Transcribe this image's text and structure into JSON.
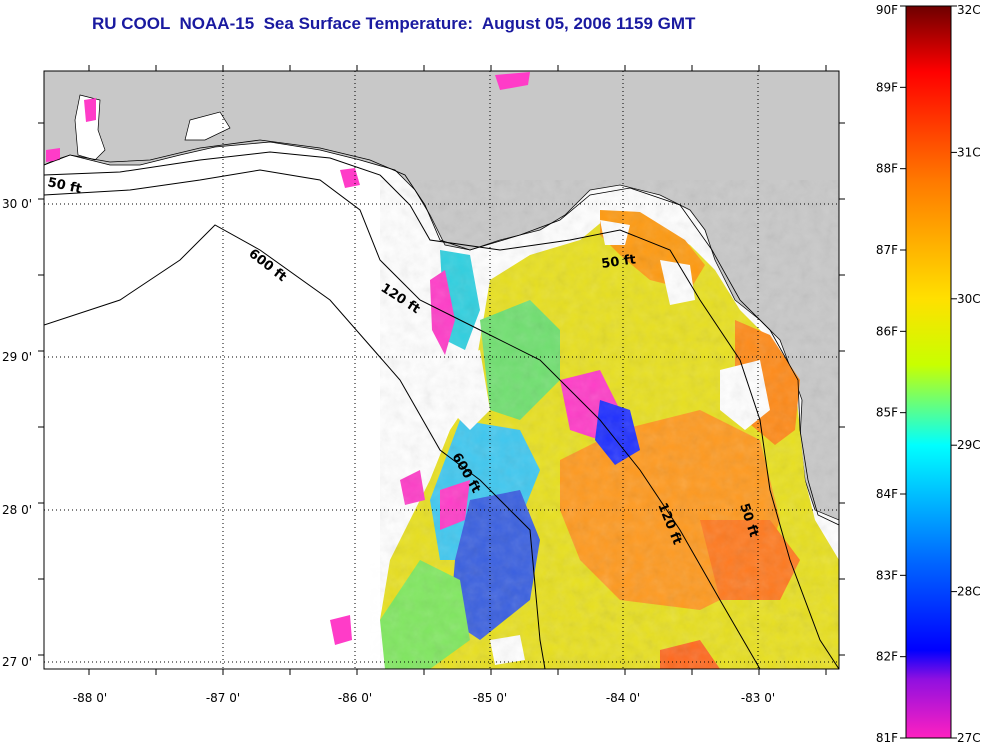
{
  "title": "RU COOL  NOAA-15  Sea Surface Temperature:  August 05, 2006 1159 GMT",
  "map": {
    "lat_labels": [
      "30 0'",
      "29 0'",
      "28 0'",
      "27 0'"
    ],
    "lon_labels": [
      "-88 0'",
      "-87 0'",
      "-86 0'",
      "-85 0'",
      "-84 0'",
      "-83 0'"
    ],
    "minor_lon_count": 12,
    "minor_lat_count": 9,
    "contours": [
      {
        "label": "50 ft",
        "where": "west"
      },
      {
        "label": "600 ft",
        "where": "northwest"
      },
      {
        "label": "120 ft",
        "where": "north"
      },
      {
        "label": "50 ft",
        "where": "east-north"
      },
      {
        "label": "600 ft",
        "where": "central"
      },
      {
        "label": "120 ft",
        "where": "south"
      },
      {
        "label": "50 ft",
        "where": "east-south"
      }
    ],
    "land_color": "#c8c8c8",
    "nodata_color": "#ffffff"
  },
  "colorbar": {
    "f_labels": [
      "90F",
      "89F",
      "88F",
      "87F",
      "86F",
      "85F",
      "84F",
      "83F",
      "82F",
      "81F"
    ],
    "c_labels": [
      "32C",
      "31C",
      "30C",
      "29C",
      "28C",
      "27C"
    ],
    "colors": [
      "#800000",
      "#ff0000",
      "#ff8000",
      "#ffff00",
      "#80ff00",
      "#00ffff",
      "#0080ff",
      "#0000ff",
      "#8000ff",
      "#ff00ff"
    ]
  }
}
